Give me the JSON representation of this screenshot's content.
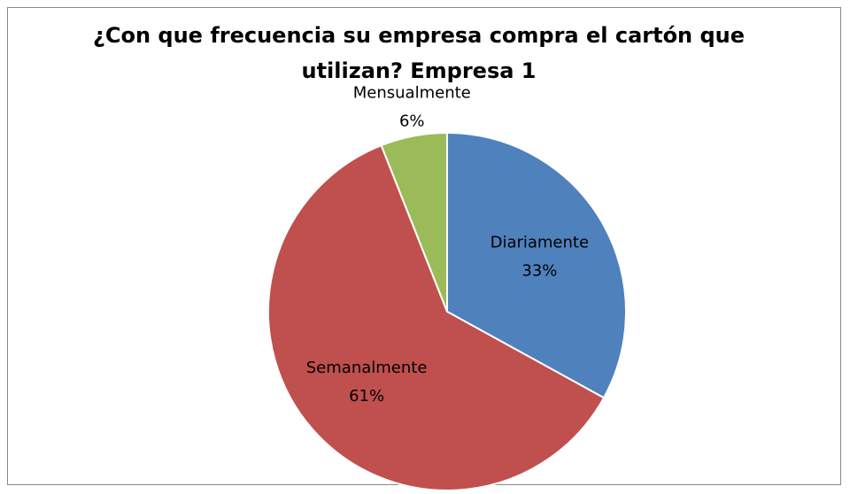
{
  "chart_data": {
    "type": "pie",
    "title": "¿Con que frecuencia su empresa compra el cartón que utilizan? Empresa 1",
    "categories": [
      "Diariamente",
      "Semanalmente",
      "Mensualmente"
    ],
    "values": [
      33,
      61,
      6
    ],
    "value_labels": [
      "33%",
      "61%",
      "6%"
    ],
    "colors": [
      "#4f81bd",
      "#c0504d",
      "#9bbb59"
    ]
  }
}
